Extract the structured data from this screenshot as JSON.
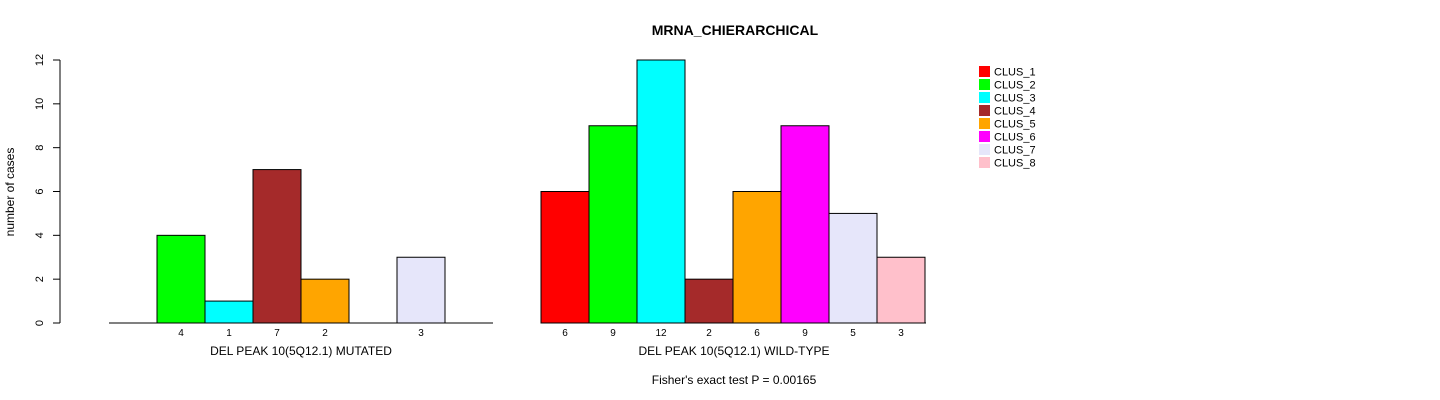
{
  "chart_data": {
    "type": "bar",
    "title": "MRNA_CHIERARCHICAL",
    "ylabel": "number of cases",
    "ylim": [
      0,
      12
    ],
    "yticks": [
      0,
      2,
      4,
      6,
      8,
      10,
      12
    ],
    "footnote": "Fisher's exact test P = 0.00165",
    "categories": [
      "CLUS_1",
      "CLUS_2",
      "CLUS_3",
      "CLUS_4",
      "CLUS_5",
      "CLUS_6",
      "CLUS_7",
      "CLUS_8"
    ],
    "colors": [
      "#ff0000",
      "#00ff00",
      "#00ffff",
      "#a52a2a",
      "#ffa500",
      "#ff00ff",
      "#e6e6fa",
      "#ffc0cb"
    ],
    "groups": [
      {
        "name": "DEL PEAK 10(5Q12.1) MUTATED",
        "values": [
          0,
          4,
          1,
          7,
          2,
          0,
          3,
          0
        ],
        "labels": [
          "",
          "4",
          "1",
          "7",
          "2",
          "",
          "3",
          ""
        ]
      },
      {
        "name": "DEL PEAK 10(5Q12.1) WILD-TYPE",
        "values": [
          6,
          9,
          12,
          2,
          6,
          9,
          5,
          3
        ],
        "labels": [
          "6",
          "9",
          "12",
          "2",
          "6",
          "9",
          "5",
          "3"
        ]
      }
    ],
    "legend": {
      "position": "right",
      "entries": [
        "CLUS_1",
        "CLUS_2",
        "CLUS_3",
        "CLUS_4",
        "CLUS_5",
        "CLUS_6",
        "CLUS_7",
        "CLUS_8"
      ]
    }
  }
}
